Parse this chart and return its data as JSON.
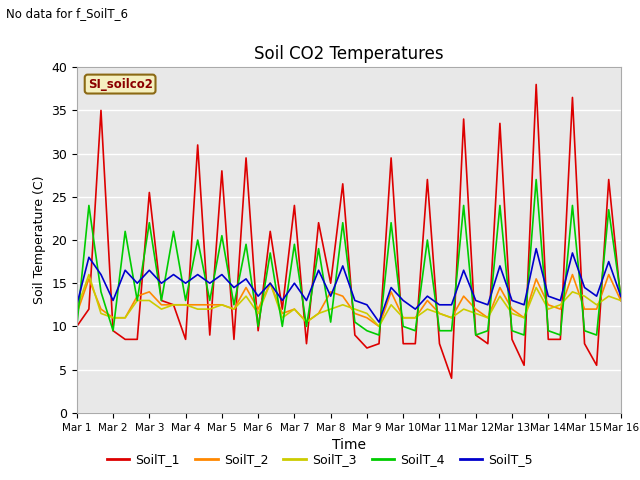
{
  "title": "Soil CO2 Temperatures",
  "no_data_label": "No data for f_SoilT_6",
  "site_label": "SI_soilco2",
  "xlabel": "Time",
  "ylabel": "Soil Temperature (C)",
  "ylim": [
    0,
    40
  ],
  "yticks": [
    0,
    5,
    10,
    15,
    20,
    25,
    30,
    35,
    40
  ],
  "xtick_labels": [
    "Mar 1",
    "Mar 2",
    "Mar 3",
    "Mar 4",
    "Mar 5",
    "Mar 6",
    "Mar 7",
    "Mar 8",
    "Mar 9",
    "Mar 10",
    "Mar 11",
    "Mar 12",
    "Mar 13",
    "Mar 14",
    "Mar 15",
    "Mar 16"
  ],
  "colors": {
    "SoilT_1": "#dd0000",
    "SoilT_2": "#ff8800",
    "SoilT_3": "#cccc00",
    "SoilT_4": "#00cc00",
    "SoilT_5": "#0000cc"
  },
  "fig_bg": "#ffffff",
  "plot_bg": "#e8e8e8",
  "grid_color": "#ffffff",
  "SoilT_1": [
    10.0,
    12.0,
    35.0,
    9.5,
    8.5,
    8.5,
    25.5,
    13.0,
    12.5,
    8.5,
    31.0,
    9.0,
    28.0,
    8.5,
    29.5,
    9.5,
    21.0,
    12.0,
    24.0,
    8.0,
    22.0,
    15.0,
    26.5,
    9.0,
    7.5,
    8.0,
    29.5,
    8.0,
    8.0,
    27.0,
    8.0,
    4.0,
    34.0,
    9.0,
    8.0,
    33.5,
    8.5,
    5.5,
    38.0,
    8.5,
    8.5,
    36.5,
    8.0,
    5.5,
    27.0,
    13.0
  ],
  "SoilT_2": [
    11.5,
    15.5,
    12.0,
    11.0,
    11.0,
    13.5,
    14.0,
    12.5,
    12.5,
    12.5,
    12.5,
    12.5,
    12.5,
    12.0,
    14.5,
    12.0,
    15.0,
    11.5,
    12.0,
    10.5,
    11.5,
    14.0,
    13.5,
    11.5,
    11.0,
    10.0,
    14.0,
    11.0,
    11.0,
    13.0,
    11.5,
    11.0,
    13.5,
    12.0,
    11.0,
    14.5,
    12.0,
    11.0,
    15.5,
    12.5,
    12.0,
    16.0,
    12.0,
    12.0,
    16.0,
    13.0
  ],
  "SoilT_3": [
    12.0,
    16.0,
    11.5,
    11.0,
    11.0,
    13.0,
    13.0,
    12.0,
    12.5,
    12.5,
    12.0,
    12.0,
    12.5,
    12.0,
    13.5,
    11.5,
    15.0,
    11.0,
    12.0,
    10.5,
    11.5,
    12.0,
    12.5,
    12.0,
    11.5,
    10.0,
    12.5,
    11.0,
    11.0,
    12.0,
    11.5,
    11.0,
    12.0,
    11.5,
    11.0,
    13.5,
    11.5,
    11.0,
    14.5,
    12.0,
    12.5,
    14.0,
    13.5,
    12.5,
    13.5,
    13.0
  ],
  "SoilT_4": [
    10.0,
    24.0,
    14.0,
    9.5,
    21.0,
    13.0,
    22.0,
    13.0,
    21.0,
    13.0,
    20.0,
    13.0,
    20.5,
    12.5,
    19.5,
    10.0,
    18.5,
    10.0,
    19.5,
    10.0,
    19.0,
    10.5,
    22.0,
    10.5,
    9.5,
    9.0,
    22.0,
    10.0,
    9.5,
    20.0,
    9.5,
    9.5,
    24.0,
    9.0,
    9.5,
    24.0,
    9.5,
    9.0,
    27.0,
    9.5,
    9.0,
    24.0,
    9.5,
    9.0,
    23.5,
    13.5
  ],
  "SoilT_5": [
    12.5,
    18.0,
    16.0,
    13.0,
    16.5,
    15.0,
    16.5,
    15.0,
    16.0,
    15.0,
    16.0,
    15.0,
    16.0,
    14.5,
    15.5,
    13.5,
    15.0,
    13.0,
    15.0,
    13.0,
    16.5,
    13.5,
    17.0,
    13.0,
    12.5,
    10.5,
    14.5,
    13.0,
    12.0,
    13.5,
    12.5,
    12.5,
    16.5,
    13.0,
    12.5,
    17.0,
    13.0,
    12.5,
    19.0,
    13.5,
    13.0,
    18.5,
    14.5,
    13.5,
    17.5,
    13.5
  ]
}
